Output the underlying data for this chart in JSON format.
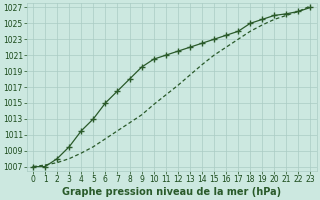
{
  "background_color": "#cce8e0",
  "grid_color": "#aaccc4",
  "line_color": "#2a5a2a",
  "xlabel": "Graphe pression niveau de la mer (hPa)",
  "ylim": [
    1007,
    1027
  ],
  "xlim": [
    0,
    23
  ],
  "yticks": [
    1007,
    1009,
    1011,
    1013,
    1015,
    1017,
    1019,
    1021,
    1023,
    1025,
    1027
  ],
  "xticks": [
    0,
    1,
    2,
    3,
    4,
    5,
    6,
    7,
    8,
    9,
    10,
    11,
    12,
    13,
    14,
    15,
    16,
    17,
    18,
    19,
    20,
    21,
    22,
    23
  ],
  "series1_x": [
    0,
    1,
    2,
    3,
    4,
    5,
    6,
    7,
    8,
    9,
    10,
    11,
    12,
    13,
    14,
    15,
    16,
    17,
    18,
    19,
    20,
    21,
    22,
    23
  ],
  "series1_y": [
    1007.0,
    1007.0,
    1008.0,
    1009.5,
    1011.5,
    1013.0,
    1015.0,
    1016.5,
    1018.0,
    1019.5,
    1020.5,
    1021.0,
    1021.5,
    1022.0,
    1022.5,
    1023.0,
    1023.5,
    1024.0,
    1025.0,
    1025.5,
    1026.0,
    1026.2,
    1026.5,
    1027.0
  ],
  "series2_x": [
    0,
    1,
    2,
    3,
    4,
    5,
    6,
    7,
    8,
    9,
    10,
    11,
    12,
    13,
    14,
    15,
    16,
    17,
    18,
    19,
    20,
    21,
    22,
    23
  ],
  "series2_y": [
    1007.0,
    1007.2,
    1007.5,
    1008.0,
    1008.7,
    1009.5,
    1010.5,
    1011.5,
    1012.5,
    1013.5,
    1014.8,
    1016.0,
    1017.2,
    1018.5,
    1019.8,
    1021.0,
    1022.0,
    1023.0,
    1024.0,
    1024.8,
    1025.5,
    1026.0,
    1026.5,
    1027.2
  ],
  "title_fontsize": 7,
  "tick_fontsize": 5.5,
  "tick_color": "#1a4a1a"
}
